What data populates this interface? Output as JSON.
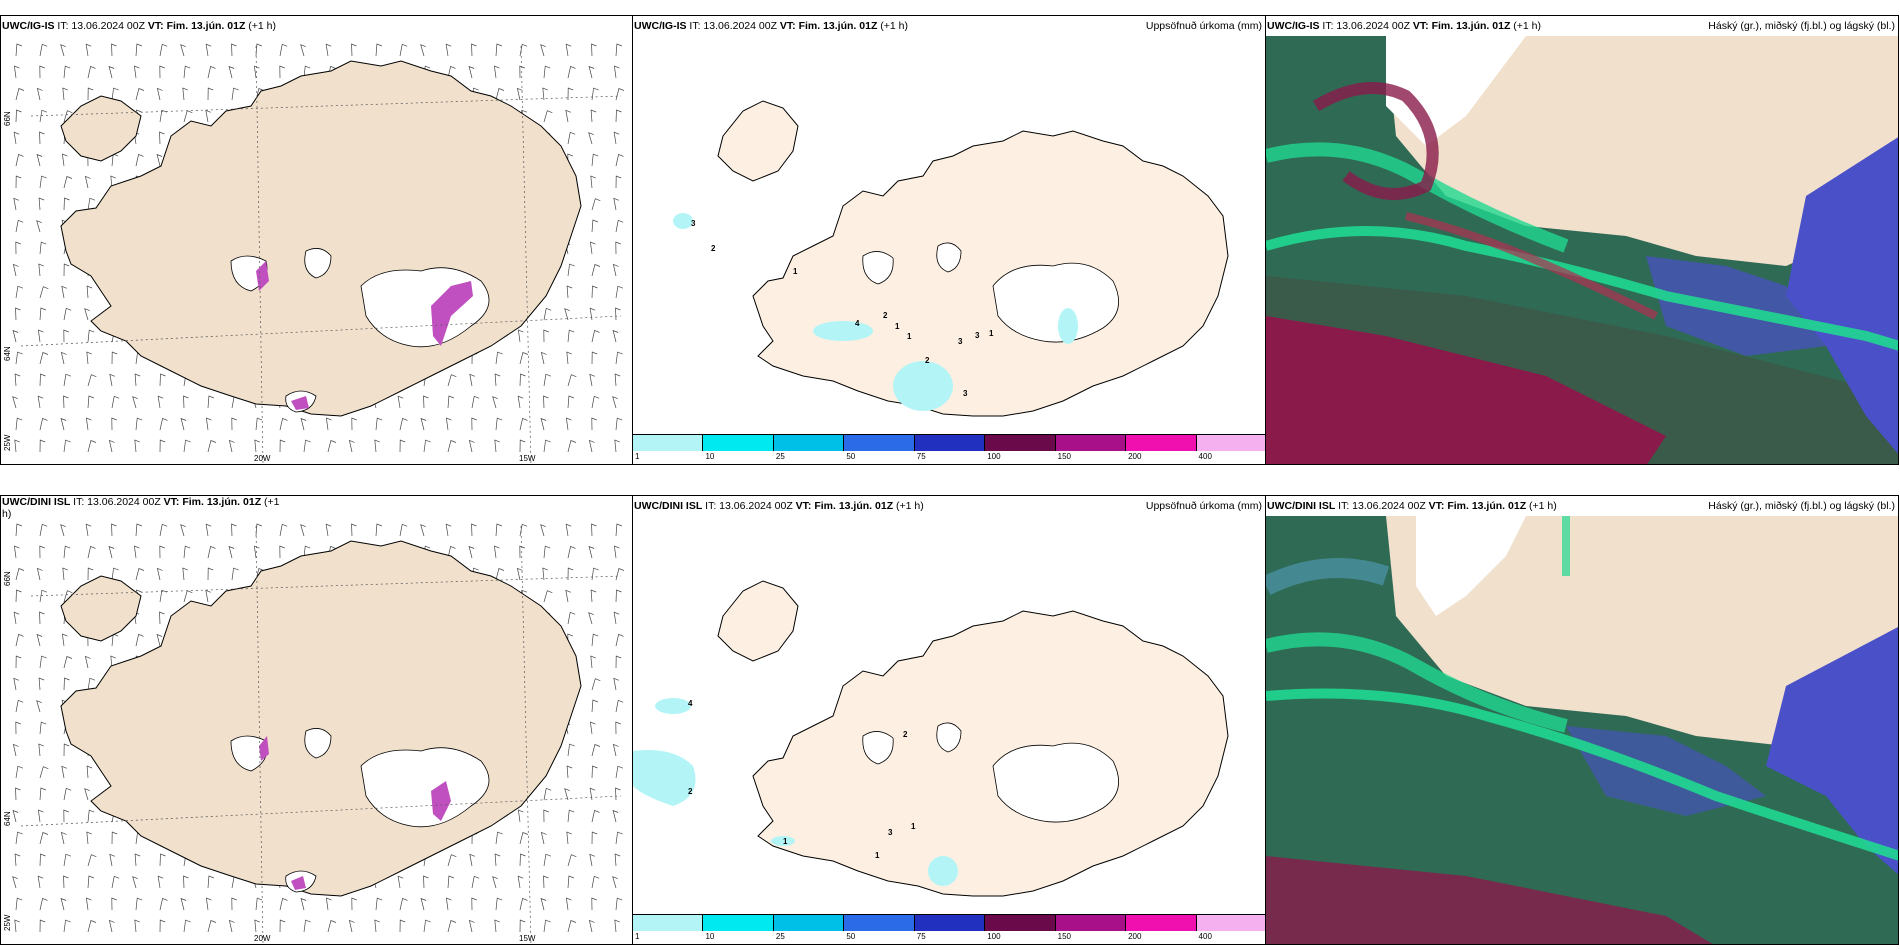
{
  "rows": [
    {
      "model": "UWC/IG-IS",
      "it_prefix": "IT: 13.06.2024 00Z",
      "vt_label": "VT: Fim. 13.jún. 01Z",
      "lead": "(+1 h)",
      "precip_numbers": [
        "3",
        "2",
        "1",
        "4",
        "2",
        "1",
        "1",
        "2",
        "3",
        "3",
        "1",
        "3"
      ]
    },
    {
      "model": "UWC/DINI ISL",
      "it_prefix": "IT: 13.06.2024 00Z",
      "vt_label": "VT: Fim. 13.jún. 01Z",
      "lead": "(+1",
      "lead2": "h)",
      "lead_full": "(+1 h)",
      "precip_numbers": [
        "4",
        "2",
        "2",
        "3",
        "1",
        "1",
        "1"
      ]
    }
  ],
  "panels": {
    "precip_title": "Uppsöfnuð úrkoma (mm)",
    "cloud_title": "Háský (gr.), miðský (fj.bl.) og lágský (bl.)"
  },
  "axis_labels": {
    "lat66": "66N",
    "lat64": "64N",
    "lon20": "20W",
    "lon15": "15W",
    "lon25": "25W"
  },
  "colorbar": {
    "labels": [
      "1",
      "10",
      "25",
      "50",
      "75",
      "100",
      "150",
      "200",
      "400"
    ],
    "colors": [
      "#b3f5f7",
      "#00e8f0",
      "#00c0e8",
      "#2b6be8",
      "#2230c0",
      "#6a0a4a",
      "#a8108a",
      "#f010b0",
      "#f5b0f0"
    ]
  },
  "colors": {
    "land": "#f0e0cc",
    "land_pale": "#fdf0e2",
    "sea_cloud_dark": "#2f6a55",
    "cloud_red": "#8a1a4a",
    "cloud_green": "#20d890",
    "cloud_blue": "#4a50c8",
    "ice": "#ffffff"
  }
}
